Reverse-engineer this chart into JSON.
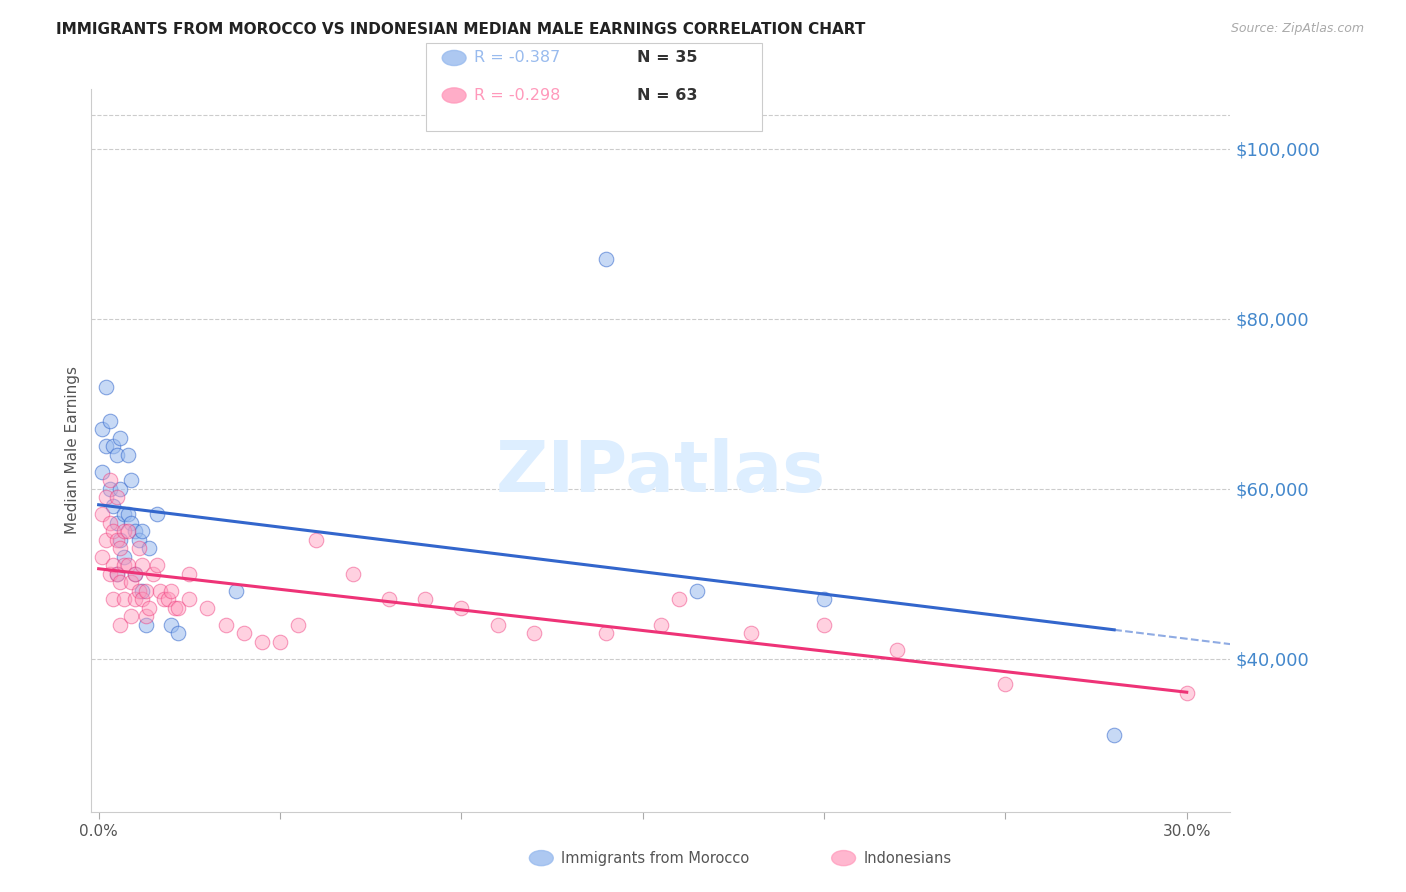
{
  "title": "IMMIGRANTS FROM MOROCCO VS INDONESIAN MEDIAN MALE EARNINGS CORRELATION CHART",
  "source": "Source: ZipAtlas.com",
  "ylabel": "Median Male Earnings",
  "ytick_labels": [
    "$40,000",
    "$60,000",
    "$80,000",
    "$100,000"
  ],
  "ytick_values": [
    40000,
    60000,
    80000,
    100000
  ],
  "ymin": 22000,
  "ymax": 107000,
  "xmin": -0.002,
  "xmax": 0.312,
  "legend_entries": [
    {
      "r": "R = -0.387",
      "n": "N = 35",
      "color": "#99BBEE"
    },
    {
      "r": "R = -0.298",
      "n": "N = 63",
      "color": "#FF99BB"
    }
  ],
  "blue_scatter_color": "#99BBEE",
  "pink_scatter_color": "#FF99BB",
  "blue_line_color": "#3366CC",
  "pink_line_color": "#EE3377",
  "watermark_text": "ZIPatlas",
  "watermark_color": "#DDEEFF",
  "morocco_x": [
    0.001,
    0.001,
    0.002,
    0.002,
    0.003,
    0.003,
    0.004,
    0.004,
    0.005,
    0.005,
    0.005,
    0.006,
    0.006,
    0.006,
    0.007,
    0.007,
    0.008,
    0.008,
    0.009,
    0.009,
    0.01,
    0.01,
    0.011,
    0.012,
    0.012,
    0.013,
    0.014,
    0.016,
    0.02,
    0.022,
    0.038,
    0.14,
    0.165,
    0.2,
    0.28
  ],
  "morocco_y": [
    67000,
    62000,
    72000,
    65000,
    68000,
    60000,
    65000,
    58000,
    64000,
    56000,
    50000,
    66000,
    60000,
    54000,
    57000,
    52000,
    64000,
    57000,
    61000,
    56000,
    55000,
    50000,
    54000,
    55000,
    48000,
    44000,
    53000,
    57000,
    44000,
    43000,
    48000,
    87000,
    48000,
    47000,
    31000
  ],
  "indonesian_x": [
    0.001,
    0.001,
    0.002,
    0.002,
    0.003,
    0.003,
    0.003,
    0.004,
    0.004,
    0.004,
    0.005,
    0.005,
    0.005,
    0.006,
    0.006,
    0.006,
    0.007,
    0.007,
    0.007,
    0.008,
    0.008,
    0.009,
    0.009,
    0.01,
    0.01,
    0.011,
    0.011,
    0.012,
    0.012,
    0.013,
    0.013,
    0.014,
    0.015,
    0.016,
    0.017,
    0.018,
    0.019,
    0.02,
    0.021,
    0.022,
    0.025,
    0.025,
    0.03,
    0.035,
    0.04,
    0.045,
    0.05,
    0.055,
    0.06,
    0.07,
    0.08,
    0.09,
    0.1,
    0.11,
    0.12,
    0.14,
    0.155,
    0.16,
    0.18,
    0.2,
    0.22,
    0.25,
    0.3
  ],
  "indonesian_y": [
    57000,
    52000,
    59000,
    54000,
    61000,
    56000,
    50000,
    55000,
    51000,
    47000,
    59000,
    54000,
    50000,
    53000,
    49000,
    44000,
    55000,
    51000,
    47000,
    55000,
    51000,
    49000,
    45000,
    50000,
    47000,
    53000,
    48000,
    51000,
    47000,
    48000,
    45000,
    46000,
    50000,
    51000,
    48000,
    47000,
    47000,
    48000,
    46000,
    46000,
    50000,
    47000,
    46000,
    44000,
    43000,
    42000,
    42000,
    44000,
    54000,
    50000,
    47000,
    47000,
    46000,
    44000,
    43000,
    43000,
    44000,
    47000,
    43000,
    44000,
    41000,
    37000,
    36000
  ]
}
